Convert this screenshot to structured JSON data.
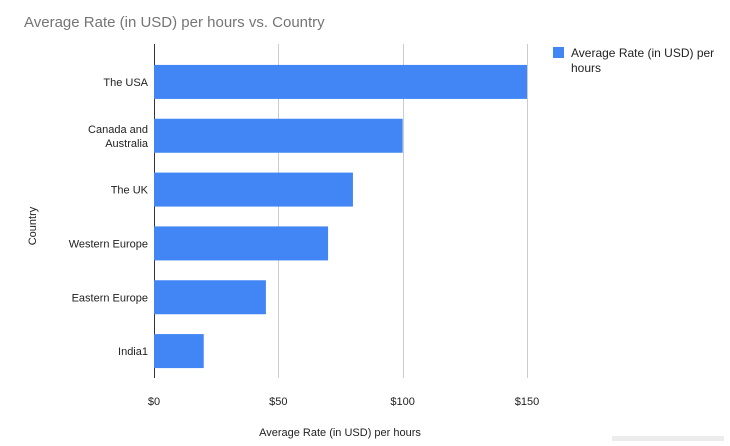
{
  "chart_data": {
    "type": "bar",
    "orientation": "horizontal",
    "title": "Average Rate (in USD) per hours vs. Country",
    "xlabel": "Average Rate (in USD) per hours",
    "ylabel": "Country",
    "categories": [
      [
        "The USA"
      ],
      [
        "Canada and",
        "Australia"
      ],
      [
        "The UK"
      ],
      [
        "Western Europe"
      ],
      [
        "Eastern Europe"
      ],
      [
        "India1"
      ]
    ],
    "series": [
      {
        "name": "Average Rate (in USD) per hours",
        "values": [
          150,
          100,
          80,
          70,
          45,
          20
        ],
        "color": "#4285f4"
      }
    ],
    "xlim": [
      0,
      150
    ],
    "xticks": [
      0,
      50,
      100,
      150
    ],
    "xtick_labels": [
      "$0",
      "$50",
      "$100",
      "$150"
    ],
    "grid": true,
    "legend": {
      "position": "top-right",
      "lines": [
        "Average Rate (in USD) per",
        "hours"
      ]
    }
  }
}
